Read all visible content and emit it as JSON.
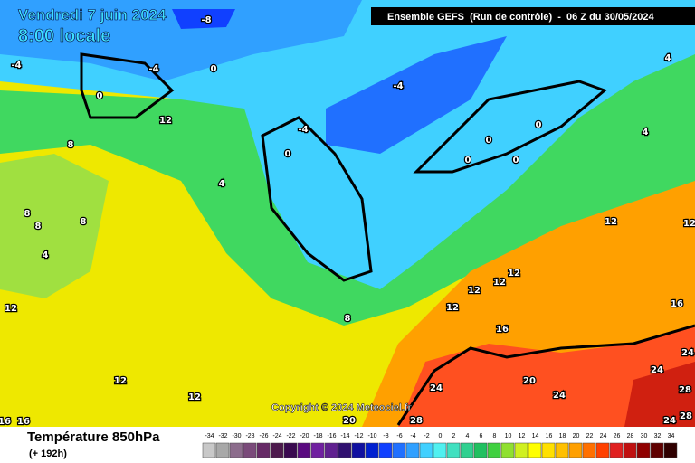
{
  "header": {
    "date": "Vendredi 7 juin 2024",
    "time": "8:00 locale",
    "run": "Ensemble GEFS  (Run de contrôle)  -  06 Z du 30/05/2024"
  },
  "copyright": "Copyright © 2024 Meteociel.fr",
  "footer": {
    "title": "Température 850hPa",
    "lead": "(+ 192h)"
  },
  "scale": {
    "values": [
      -34,
      -32,
      -30,
      -28,
      -26,
      -24,
      -22,
      -20,
      -18,
      -16,
      -14,
      -12,
      -10,
      -8,
      -6,
      -4,
      -2,
      0,
      2,
      4,
      6,
      8,
      10,
      12,
      14,
      16,
      18,
      20,
      22,
      24,
      26,
      28,
      30,
      32,
      34
    ],
    "colors": [
      "#c8c8c8",
      "#a8a8a8",
      "#8c6c8c",
      "#7a4a7a",
      "#662a66",
      "#4d1a4d",
      "#3a0a50",
      "#5a0a80",
      "#7020a0",
      "#602090",
      "#301070",
      "#1010a0",
      "#0020d0",
      "#1040ff",
      "#2070ff",
      "#30a0ff",
      "#40d0ff",
      "#50f0f0",
      "#40e0c0",
      "#30d090",
      "#20c060",
      "#40d040",
      "#90e030",
      "#d0f020",
      "#ffff00",
      "#ffe000",
      "#ffc000",
      "#ffa000",
      "#ff7000",
      "#ff4000",
      "#e02020",
      "#c01010",
      "#900000",
      "#600000",
      "#300000"
    ]
  },
  "contour_labels": [
    -8,
    -4,
    -4,
    0,
    0,
    -4,
    4,
    12,
    -4,
    0,
    0,
    0,
    0,
    0,
    4,
    4,
    8,
    8,
    8,
    8,
    4,
    12,
    12,
    12,
    12,
    12,
    12,
    12,
    8,
    16,
    16,
    24,
    24,
    12,
    12,
    24,
    20,
    24,
    28,
    20,
    28,
    24,
    28,
    16,
    16
  ]
}
